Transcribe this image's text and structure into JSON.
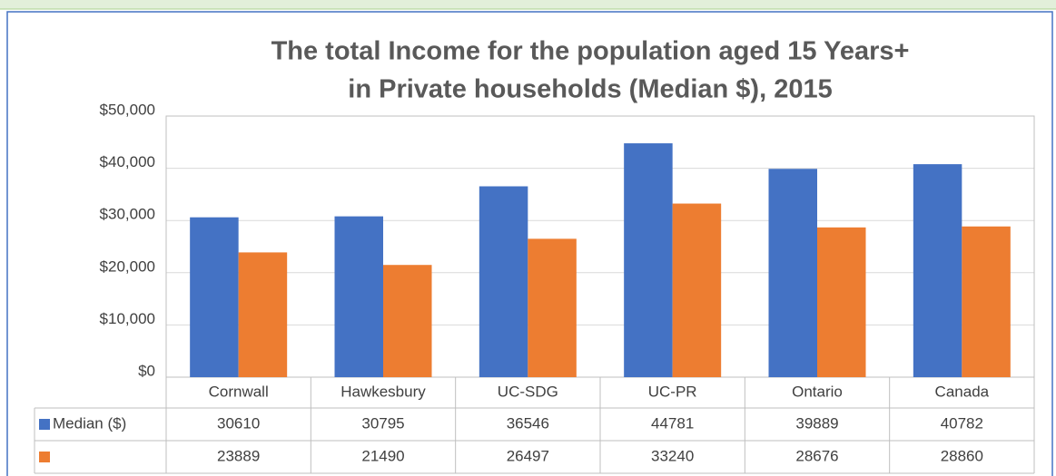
{
  "chart_data": {
    "type": "bar",
    "title": [
      "The total Income for the population aged 15 Years+",
      "in Private households (Median $), 2015"
    ],
    "categories": [
      "Cornwall",
      "Hawkesbury",
      "UC-SDG",
      "UC-PR",
      "Ontario",
      "Canada"
    ],
    "series": [
      {
        "name": "Median ($)",
        "color": "#4472c4",
        "values": [
          30610,
          30795,
          36546,
          44781,
          39889,
          40782
        ]
      },
      {
        "color": "#ed7d31",
        "values": [
          23889,
          21490,
          26497,
          33240,
          28676,
          28860
        ]
      }
    ],
    "ylim": [
      0,
      50000
    ],
    "yticks": [
      {
        "value": 0,
        "label": "$0"
      },
      {
        "value": 10000,
        "label": "$10,000"
      },
      {
        "value": 20000,
        "label": "$20,000"
      },
      {
        "value": 30000,
        "label": "$30,000"
      },
      {
        "value": 40000,
        "label": "$40,000"
      },
      {
        "value": 50000,
        "label": "$50,000"
      }
    ],
    "grid": true
  }
}
